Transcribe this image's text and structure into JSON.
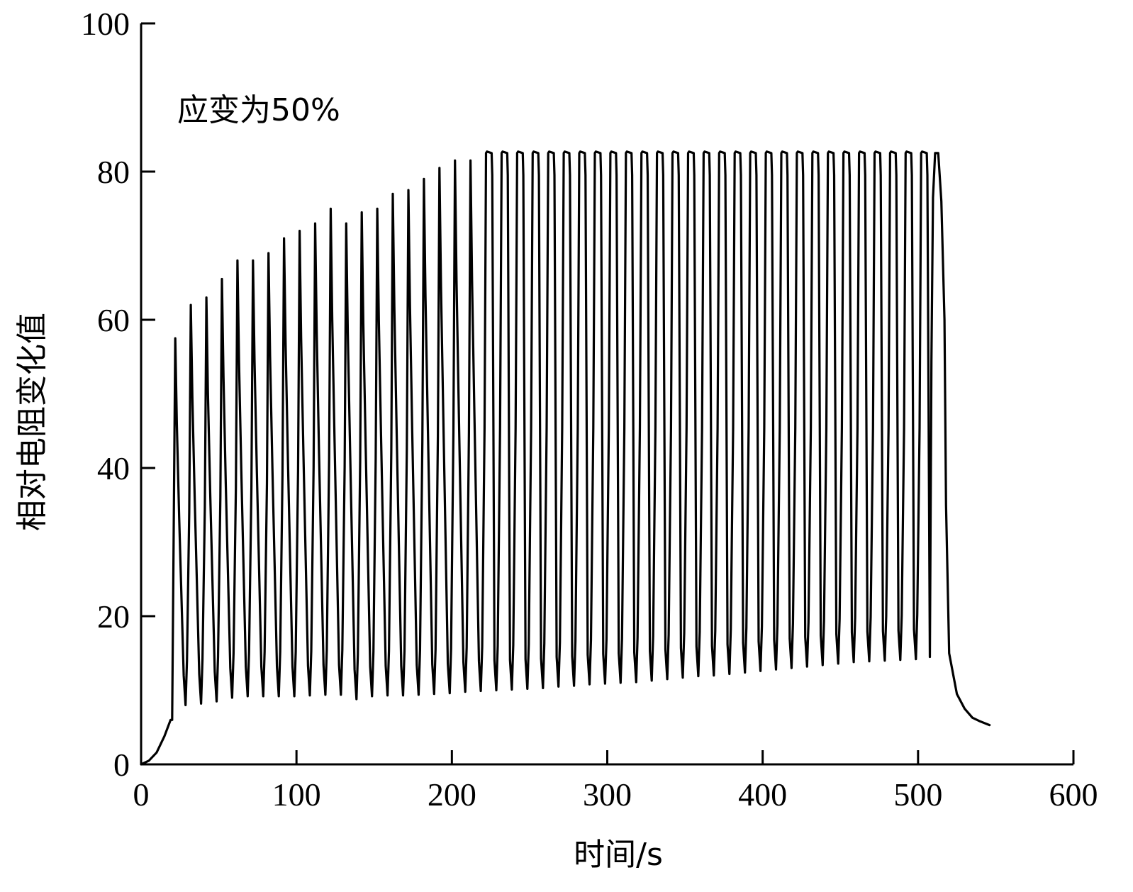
{
  "chart_data": {
    "type": "line",
    "xlabel": "时间/s",
    "ylabel": "相对电阻变化值",
    "xlim": [
      0,
      600
    ],
    "ylim": [
      0,
      100
    ],
    "xticks": [
      0,
      100,
      200,
      300,
      400,
      500,
      600
    ],
    "yticks": [
      0,
      20,
      40,
      60,
      80,
      100
    ],
    "grid": false,
    "annotation": "应变为50%",
    "series": [
      {
        "cycle_start_s": 20,
        "cycle_period_s": 10,
        "cycle_peaks": [
          57.5,
          62,
          63,
          65.5,
          68,
          68,
          69,
          71,
          72,
          73,
          75,
          73,
          74.5,
          75,
          77,
          77.5,
          79,
          80.5,
          81.5,
          81.5,
          82.5,
          82.5,
          82.5,
          82.5,
          82.5,
          82.5,
          82.5,
          82.5,
          82.5,
          82.5,
          82.5,
          82.5,
          82.5,
          82.5,
          82.5,
          82.5,
          82.5,
          82.5,
          82.5,
          82.5,
          82.5,
          82.5,
          82.5,
          82.5,
          82.5,
          82.5,
          82.5,
          82.5,
          82.5
        ],
        "cycle_valleys": [
          8,
          8.2,
          8.5,
          9,
          9.2,
          9.2,
          9.2,
          9.2,
          9.3,
          9.4,
          9.4,
          8.8,
          9.2,
          9.3,
          9.3,
          9.4,
          9.5,
          9.6,
          9.8,
          9.9,
          10,
          10.1,
          10.2,
          10.3,
          10.5,
          10.6,
          10.8,
          10.9,
          11,
          11.1,
          11.3,
          11.5,
          11.7,
          11.9,
          12,
          12.2,
          12.4,
          12.6,
          12.8,
          13,
          13.2,
          13.4,
          13.6,
          13.8,
          13.9,
          14,
          14.1,
          14.2,
          14.5
        ],
        "initial_rise": [
          [
            0,
            0
          ],
          [
            5,
            0.5
          ],
          [
            10,
            1.6
          ],
          [
            15,
            3.8
          ],
          [
            19,
            6
          ]
        ],
        "final_decay": [
          [
            515,
            76
          ],
          [
            517,
            60
          ],
          [
            518,
            35
          ],
          [
            520,
            15
          ],
          [
            525,
            9.5
          ],
          [
            530,
            7.5
          ],
          [
            535,
            6.3
          ],
          [
            540,
            5.8
          ],
          [
            546,
            5.3
          ]
        ]
      }
    ]
  }
}
